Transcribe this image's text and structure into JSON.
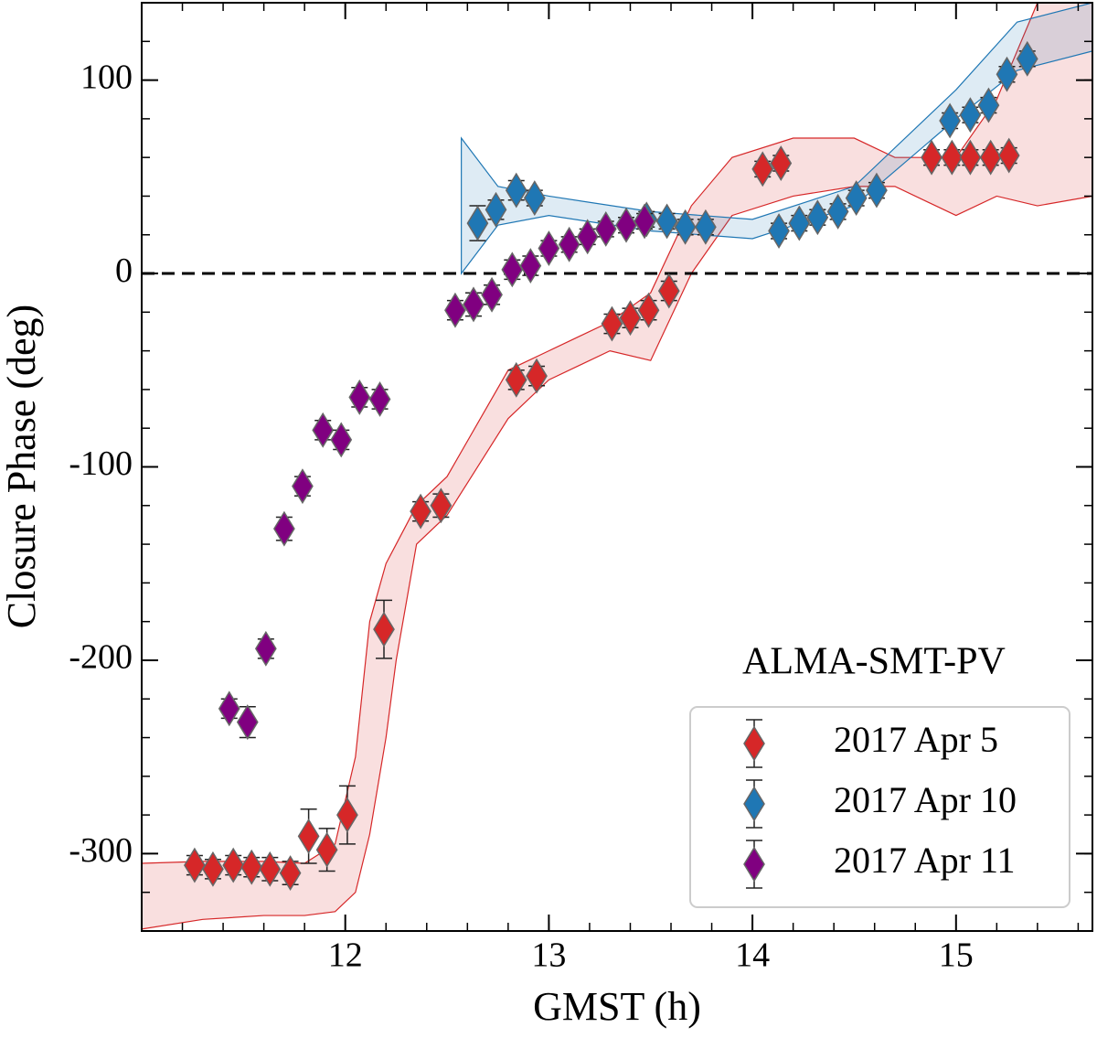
{
  "chart_data": {
    "type": "scatter",
    "xlabel": "GMST (h)",
    "ylabel": "Closure Phase (deg)",
    "annotation": "ALMA-SMT-PV",
    "xlim": [
      11.0,
      15.67
    ],
    "ylim": [
      -340,
      140
    ],
    "xticks": [
      12,
      13,
      14,
      15
    ],
    "yticks": [
      -300,
      -200,
      -100,
      0,
      100
    ],
    "xminor_step": 0.2,
    "yminor_step": 20,
    "hline": 0,
    "legend": "lower right",
    "series": [
      {
        "name": "2017 Apr 5",
        "color": "#d62728",
        "x": [
          11.26,
          11.35,
          11.45,
          11.54,
          11.63,
          11.73,
          11.82,
          11.91,
          12.01,
          12.19,
          12.37,
          12.47,
          12.84,
          12.94,
          13.31,
          13.4,
          13.49,
          13.59,
          14.05,
          14.14,
          14.88,
          14.98,
          15.07,
          15.17,
          15.26
        ],
        "values": [
          -306,
          -308,
          -306,
          -307,
          -308,
          -310,
          -291,
          -298,
          -280,
          -184,
          -123,
          -120,
          -55,
          -53,
          -26,
          -23,
          -19,
          -9,
          54,
          57,
          60,
          60,
          60,
          60,
          61
        ],
        "errors": [
          5,
          5,
          5,
          5,
          6,
          6,
          14,
          11,
          15,
          15,
          5,
          6,
          5,
          5,
          5,
          5,
          5,
          5,
          4,
          4,
          4,
          4,
          4,
          4,
          4
        ],
        "band": {
          "x": [
            11.0,
            11.3,
            11.6,
            11.8,
            11.95,
            12.05,
            12.12,
            12.2,
            12.25,
            12.35,
            12.5,
            12.8,
            13.0,
            13.3,
            13.5,
            13.7,
            13.9,
            14.2,
            14.5,
            14.7,
            15.0,
            15.2,
            15.4,
            15.67
          ],
          "lower": [
            -339,
            -334,
            -332,
            -332,
            -330,
            -320,
            -290,
            -240,
            -200,
            -140,
            -125,
            -75,
            -55,
            -40,
            -45,
            0,
            30,
            40,
            45,
            45,
            30,
            40,
            35,
            40
          ],
          "upper": [
            -305,
            -304,
            -304,
            -305,
            -295,
            -250,
            -180,
            -150,
            -140,
            -120,
            -105,
            -50,
            -40,
            -25,
            -10,
            35,
            60,
            70,
            70,
            60,
            60,
            90,
            140,
            140
          ]
        }
      },
      {
        "name": "2017 Apr 10",
        "color": "#1f77b4",
        "x": [
          12.65,
          12.74,
          12.84,
          12.93,
          13.48,
          13.58,
          13.67,
          13.77,
          14.13,
          14.23,
          14.32,
          14.42,
          14.51,
          14.61,
          14.97,
          15.07,
          15.16,
          15.25,
          15.35
        ],
        "values": [
          26,
          33,
          43,
          39,
          28,
          27,
          24,
          24,
          22,
          26,
          29,
          32,
          39,
          43,
          79,
          82,
          87,
          103,
          111
        ],
        "errors": [
          9,
          5,
          5,
          4,
          4,
          4,
          4,
          4,
          4,
          4,
          4,
          4,
          4,
          4,
          4,
          4,
          4,
          4,
          4
        ],
        "band": {
          "x": [
            12.57,
            12.75,
            13.0,
            13.5,
            14.0,
            14.5,
            15.0,
            15.3,
            15.67
          ],
          "lower": [
            0,
            25,
            30,
            22,
            18,
            35,
            80,
            105,
            115
          ],
          "upper": [
            70,
            45,
            40,
            32,
            28,
            45,
            95,
            130,
            140
          ]
        }
      },
      {
        "name": "2017 Apr 11",
        "color": "#800080",
        "x": [
          11.43,
          11.52,
          11.61,
          11.7,
          11.79,
          11.89,
          11.98,
          12.07,
          12.17,
          12.54,
          12.63,
          12.72,
          12.82,
          12.91,
          13.0,
          13.1,
          13.19,
          13.28,
          13.38,
          13.47
        ],
        "values": [
          -225,
          -232,
          -194,
          -132,
          -110,
          -81,
          -86,
          -64,
          -65,
          -19,
          -16,
          -11,
          2,
          4,
          13,
          15,
          19,
          23,
          25,
          27
        ],
        "errors": [
          5,
          8,
          5,
          6,
          5,
          5,
          5,
          5,
          5,
          5,
          6,
          5,
          5,
          5,
          4,
          4,
          4,
          4,
          4,
          4
        ]
      }
    ]
  }
}
